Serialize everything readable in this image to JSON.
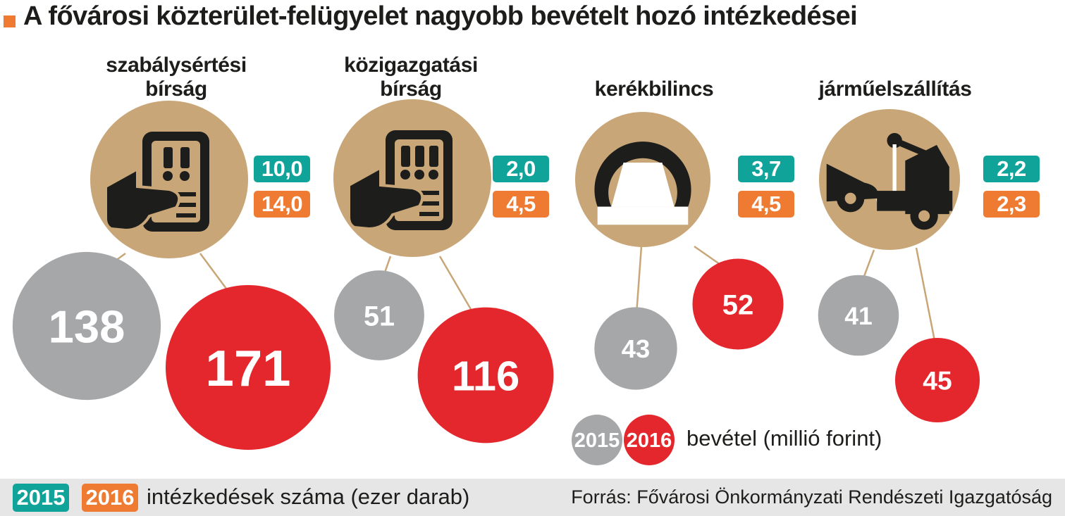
{
  "title": "A fővárosi közterület-felügyelet nagyobb bevételt hozó intézkedései",
  "colors": {
    "accent_orange": "#ef7a31",
    "teal_2015": "#10a39a",
    "gray_2015": "#a6a7a9",
    "red_2016": "#e4272c",
    "icon_circle": "#c9a677",
    "icon_dark": "#1d1d1b"
  },
  "legend_revenue": {
    "year_2015": "2015",
    "year_2016": "2016",
    "label": "bevétel (millió forint)"
  },
  "legend_count": {
    "year_2015": "2015",
    "year_2016": "2016",
    "label": "intézkedések száma (ezer darab)"
  },
  "source": "Forrás: Fővárosi Önkormányzati Rendészeti Igazgatóság",
  "chart_data": {
    "type": "bubble",
    "categories": [
      "szabálysértési\nbírság",
      "közigazgatási\nbírság",
      "kerékbilincs",
      "járműelszállítás"
    ],
    "icons": [
      "fine-ticket-icon",
      "admin-fine-ticket-icon",
      "wheel-clamp-icon",
      "tow-truck-icon"
    ],
    "series": [
      {
        "name": "intézkedések száma (ezer darab) 2015",
        "values_text": [
          "10,0",
          "2,0",
          "3,7",
          "2,2"
        ],
        "values": [
          10.0,
          2.0,
          3.7,
          2.2
        ]
      },
      {
        "name": "intézkedések száma (ezer darab) 2016",
        "values_text": [
          "14,0",
          "4,5",
          "4,5",
          "2,3"
        ],
        "values": [
          14.0,
          4.5,
          4.5,
          2.3
        ]
      },
      {
        "name": "bevétel (millió forint) 2015",
        "values": [
          138,
          51,
          43,
          41
        ]
      },
      {
        "name": "bevétel (millió forint) 2016",
        "values": [
          171,
          116,
          52,
          45
        ]
      }
    ]
  }
}
